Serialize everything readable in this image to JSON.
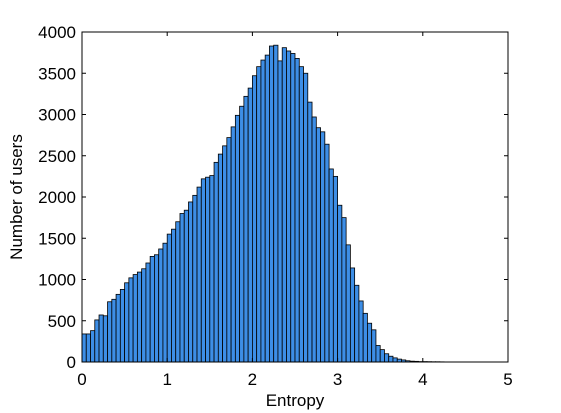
{
  "chart_data": {
    "type": "histogram",
    "xlabel": "Entropy",
    "ylabel": "Number of users",
    "color": "#3d8ee6",
    "bins": [
      0,
      0.05,
      0.1,
      0.15,
      0.2,
      0.25,
      0.3,
      0.35,
      0.4,
      0.45,
      0.5,
      0.55,
      0.6,
      0.65,
      0.7,
      0.75,
      0.8,
      0.85,
      0.9,
      0.95,
      1,
      1.05,
      1.1,
      1.15,
      1.2,
      1.25,
      1.3,
      1.35,
      1.4,
      1.45,
      1.5,
      1.55,
      1.6,
      1.65,
      1.7,
      1.75,
      1.8,
      1.85,
      1.9,
      1.95,
      2,
      2.05,
      2.1,
      2.15,
      2.2,
      2.25,
      2.3,
      2.35,
      2.4,
      2.45,
      2.5,
      2.55,
      2.6,
      2.65,
      2.7,
      2.75,
      2.8,
      2.85,
      2.9,
      2.95,
      3,
      3.05,
      3.1,
      3.15,
      3.2,
      3.25,
      3.3,
      3.35,
      3.4,
      3.45,
      3.5,
      3.55,
      3.6,
      3.65,
      3.7,
      3.75,
      3.8,
      3.85,
      3.9,
      3.95,
      4,
      4.05,
      4.1,
      4.15,
      4.2,
      4.25,
      4.3,
      4.35,
      4.4,
      4.45,
      4.5,
      4.55,
      4.6,
      4.65,
      4.7,
      4.75,
      4.8,
      4.85,
      4.9,
      4.95,
      5
    ],
    "values": [
      340,
      340,
      380,
      510,
      570,
      560,
      730,
      760,
      820,
      880,
      960,
      1020,
      1060,
      1090,
      1130,
      1200,
      1280,
      1300,
      1370,
      1440,
      1550,
      1610,
      1700,
      1800,
      1840,
      1940,
      2020,
      2120,
      2220,
      2240,
      2260,
      2420,
      2520,
      2620,
      2720,
      2850,
      2990,
      3100,
      3220,
      3320,
      3470,
      3580,
      3660,
      3720,
      3830,
      3840,
      3650,
      3810,
      3770,
      3740,
      3680,
      3580,
      3500,
      3150,
      2970,
      2840,
      2790,
      2640,
      2340,
      2250,
      1900,
      1750,
      1420,
      1140,
      930,
      740,
      590,
      470,
      390,
      200,
      150,
      100,
      70,
      50,
      35,
      25,
      15,
      10,
      8,
      5,
      5,
      4,
      3,
      3,
      2,
      1,
      1,
      1,
      0,
      0,
      0,
      0,
      0,
      0,
      0,
      0,
      0,
      0,
      0,
      0
    ],
    "xlim": [
      0,
      5
    ],
    "xticks": [
      0,
      1,
      2,
      3,
      4,
      5
    ],
    "ylim": [
      0,
      4000
    ],
    "yticks": [
      0,
      500,
      1000,
      1500,
      2000,
      2500,
      3000,
      3500,
      4000
    ]
  }
}
